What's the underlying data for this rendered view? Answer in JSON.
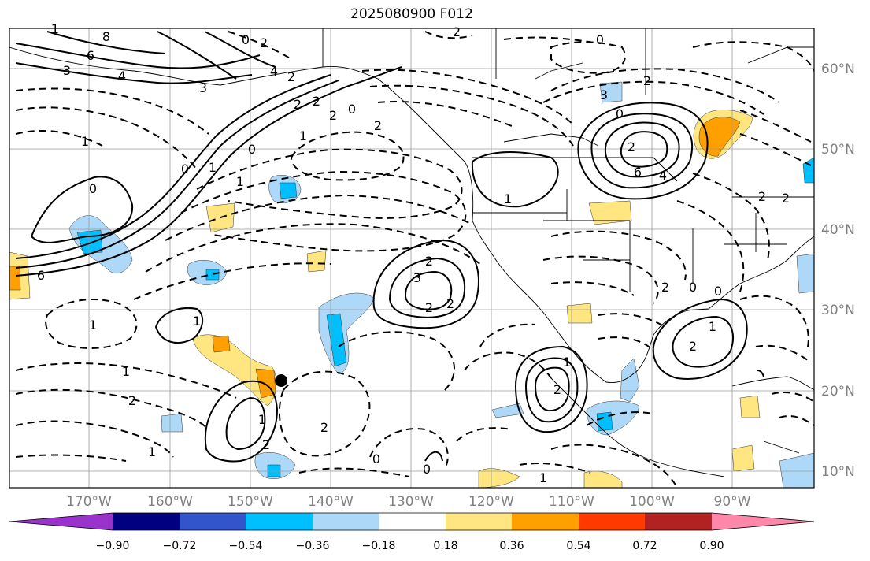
{
  "title": "2025080900 F012",
  "map": {
    "lon_labels": [
      "170°W",
      "160°W",
      "150°W",
      "140°W",
      "130°W",
      "120°W",
      "110°W",
      "100°W",
      "90°W"
    ],
    "lat_labels": [
      "60°N",
      "50°N",
      "40°N",
      "30°N",
      "20°N",
      "10°N"
    ],
    "marker": "black-dot"
  },
  "contour_labels": [
    "8",
    "6",
    "4",
    "3",
    "0",
    "2",
    "2",
    "2",
    "4",
    "3",
    "0",
    "1",
    "0",
    "6",
    "1",
    "0",
    "2",
    "2",
    "2",
    "1",
    "1",
    "1",
    "0",
    "2",
    "0",
    "3",
    "2",
    "0",
    "2",
    "6",
    "4",
    "1",
    "3",
    "2",
    "2",
    "2",
    "2",
    "1",
    "2",
    "1",
    "2",
    "0",
    "0",
    "1",
    "1",
    "1",
    "2",
    "1",
    "2",
    "1",
    "2",
    "0",
    "0",
    "1",
    "2",
    "2"
  ],
  "colorbar": {
    "ticks": [
      "−0.90",
      "−0.72",
      "−0.54",
      "−0.36",
      "−0.18",
      "0.18",
      "0.36",
      "0.54",
      "0.72",
      "0.90"
    ],
    "colors": [
      "#9933cc",
      "#000080",
      "#3355cc",
      "#00bfff",
      "#add8f7",
      "#ffffff",
      "#ffe680",
      "#ffa000",
      "#ff3a00",
      "#b22222",
      "#ff88aa"
    ]
  }
}
